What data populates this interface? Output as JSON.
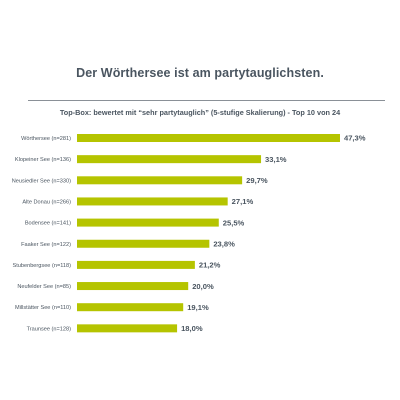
{
  "page": {
    "title": "Der Wörthersee ist am partytauglichsten."
  },
  "chart_data": {
    "type": "bar",
    "orientation": "horizontal",
    "title": "Top-Box: bewertet mit “sehr partytauglich” (5-stufige Skalierung) - Top 10 von 24",
    "categories": [
      "Wörthersee (n=281)",
      "Klopeiner See (n=136)",
      "Neusiedler See (n=330)",
      "Alte Donau (n=266)",
      "Bodensee (n=141)",
      "Faaker See (n=122)",
      "Stubenbergsee (n=118)",
      "Neufelder See (n=85)",
      "Millstätter See (n=110)",
      "Traunsee (n=128)"
    ],
    "values": [
      47.3,
      33.1,
      29.7,
      27.1,
      25.5,
      23.8,
      21.2,
      20.0,
      19.1,
      18.0
    ],
    "value_labels": [
      "47,3%",
      "33,1%",
      "29,7%",
      "27,1%",
      "25,5%",
      "23,8%",
      "21,2%",
      "20,0%",
      "19,1%",
      "18,0%"
    ],
    "xlim": [
      0,
      50
    ],
    "bar_color": "#b5c400",
    "grid": false,
    "legend": "none"
  }
}
